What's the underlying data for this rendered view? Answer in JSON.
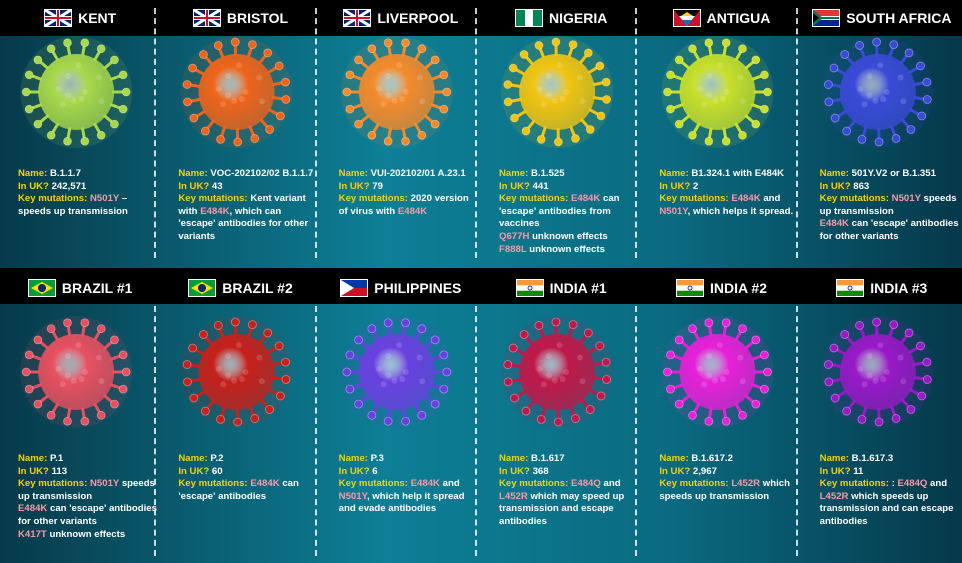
{
  "labels": {
    "name": "Name:",
    "uk": "In UK?",
    "mutations": "Key mutations:"
  },
  "variants": [
    {
      "title": "KENT",
      "color": "#a8d84a",
      "name": "B.1.1.7",
      "uk": "242,571",
      "mutations": [
        [
          {
            "text": "N501Y",
            "hl": true
          },
          {
            "text": " – speeds up transmission",
            "hl": false
          }
        ]
      ]
    },
    {
      "title": "BRISTOL",
      "color": "#f0641a",
      "name": "VOC-202102/02 B.1.1.7",
      "uk": "43",
      "mutations": [
        [
          {
            "text": "Kent variant with ",
            "hl": false
          },
          {
            "text": "E484K",
            "hl": true
          },
          {
            "text": ", which can 'escape' antibodies for other variants",
            "hl": false
          }
        ]
      ]
    },
    {
      "title": "LIVERPOOL",
      "color": "#f58a2a",
      "name": "VUI-202102/01 A.23.1",
      "uk": "79",
      "mutations": [
        [
          {
            "text": "2020 version of virus with ",
            "hl": false
          },
          {
            "text": "E484K",
            "hl": true
          }
        ]
      ]
    },
    {
      "title": "NIGERIA",
      "color": "#f2c40f",
      "name": "B.1.525",
      "uk": "441",
      "mutations": [
        [
          {
            "text": "E484K",
            "hl": true
          },
          {
            "text": " can 'escape' antibodies from vaccines",
            "hl": false
          }
        ],
        [
          {
            "text": "Q677H",
            "hl": true
          },
          {
            "text": " unknown effects",
            "hl": false
          }
        ],
        [
          {
            "text": "F888L",
            "hl": true
          },
          {
            "text": " unknown effects",
            "hl": false
          }
        ]
      ]
    },
    {
      "title": "ANTIGUA",
      "color": "#c8e02a",
      "name": "B1.324.1 with E484K",
      "uk": "2",
      "mutations": [
        [
          {
            "text": "E484K",
            "hl": true
          },
          {
            "text": " and ",
            "hl": false
          },
          {
            "text": "N501Y",
            "hl": true
          },
          {
            "text": ", which helps it spread.",
            "hl": false
          }
        ]
      ]
    },
    {
      "title": "SOUTH AFRICA",
      "color": "#3a4ad8",
      "name": "501Y.V2 or B.1.351",
      "uk": "863",
      "mutations": [
        [
          {
            "text": "N501Y",
            "hl": true
          },
          {
            "text": " speeds up transmission",
            "hl": false
          }
        ],
        [
          {
            "text": "E484K",
            "hl": true
          },
          {
            "text": " can 'escape' antibodies for other variants",
            "hl": false
          }
        ]
      ]
    },
    {
      "title": "BRAZIL #1",
      "color": "#e85060",
      "name": "P.1",
      "uk": "113",
      "mutations": [
        [
          {
            "text": "N501Y",
            "hl": true
          },
          {
            "text": " speeds up transmission",
            "hl": false
          }
        ],
        [
          {
            "text": "E484K",
            "hl": true
          },
          {
            "text": " can 'escape' antibodies for other variants",
            "hl": false
          }
        ],
        [
          {
            "text": "K417T",
            "hl": true
          },
          {
            "text": " unknown effects",
            "hl": false
          }
        ]
      ]
    },
    {
      "title": "BRAZIL #2",
      "color": "#c8201a",
      "name": "P.2",
      "uk": "60",
      "mutations": [
        [
          {
            "text": "E484K",
            "hl": true
          },
          {
            "text": " can 'escape' antibodies",
            "hl": false
          }
        ]
      ]
    },
    {
      "title": "PHILIPPINES",
      "color": "#6a40e0",
      "name": "P.3",
      "uk": "6",
      "mutations": [
        [
          {
            "text": "E484K",
            "hl": true
          },
          {
            "text": " and ",
            "hl": false
          },
          {
            "text": "N501Y",
            "hl": true
          },
          {
            "text": ", which help it spread and evade antibodies",
            "hl": false
          }
        ]
      ]
    },
    {
      "title": "INDIA #1",
      "color": "#c01848",
      "name": "B.1.617",
      "uk": "368",
      "mutations": [
        [
          {
            "text": "E484Q",
            "hl": true
          },
          {
            "text": " and ",
            "hl": false
          },
          {
            "text": "L452R",
            "hl": true
          },
          {
            "text": " which may speed up transmission and escape antibodies",
            "hl": false
          }
        ]
      ]
    },
    {
      "title": "INDIA #2",
      "color": "#e820d8",
      "name": "B.1.617.2",
      "uk": "2,967",
      "mutations": [
        [
          {
            "text": "L452R",
            "hl": true
          },
          {
            "text": " which speeds up transmission",
            "hl": false
          }
        ]
      ]
    },
    {
      "title": "INDIA #3",
      "color": "#9a18c8",
      "name": "B.1.617.3",
      "uk": "11",
      "mutations": [
        [
          {
            "text": ": ",
            "hl": false
          },
          {
            "text": "E484Q",
            "hl": true
          },
          {
            "text": " and ",
            "hl": false
          },
          {
            "text": "L452R",
            "hl": true
          },
          {
            "text": " which speeds up transmission and can escape antibodies",
            "hl": false
          }
        ]
      ]
    }
  ]
}
